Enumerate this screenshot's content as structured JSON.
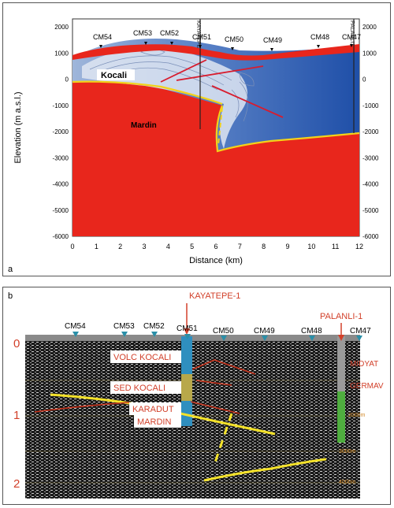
{
  "panel_a": {
    "label": "a",
    "xlabel": "Distance (km)",
    "ylabel": "Elevation (m a.s.l.)",
    "x_ticks": [
      "0",
      "1",
      "2",
      "3",
      "4",
      "5",
      "6",
      "7",
      "8",
      "9",
      "10",
      "11",
      "12"
    ],
    "y_ticks": [
      "2000",
      "1000",
      "0",
      "-1000",
      "-2000",
      "-3000",
      "-4000",
      "-5000",
      "-6000"
    ],
    "stations": [
      "CM54",
      "CM53",
      "CM52",
      "CM51",
      "CM50",
      "CM49",
      "CM48",
      "CM47"
    ],
    "wells": [
      "KAYATEPE",
      "PALANLI1"
    ],
    "units": {
      "upper": "Kocali",
      "lower": "Mardin"
    },
    "colors": {
      "mardin": "#e8261c",
      "blue": "#2f5fb8",
      "fault": "#d81c2e",
      "contact": "#f2d21a"
    }
  },
  "panel_b": {
    "label": "b",
    "wells": [
      "KAYATEPE-1",
      "PALANLI-1"
    ],
    "stations": [
      "CM54",
      "CM53",
      "CM52",
      "CM51",
      "CM50",
      "CM49",
      "CM48",
      "CM47"
    ],
    "left_scale": [
      "0",
      "1",
      "2"
    ],
    "formations_left": [
      "VOLC KOCALI",
      "SED KOCALI",
      "KARADUT",
      "MARDIN"
    ],
    "formations_right": [
      "MIDYAT",
      "GERMAV"
    ],
    "depth_marks": [
      "2000m",
      "3000m",
      "4000m"
    ],
    "colors": {
      "annot": "#d2402a",
      "yellow": "#f4e22a",
      "fault": "#c8351e",
      "station": "#2a8fa8"
    }
  }
}
